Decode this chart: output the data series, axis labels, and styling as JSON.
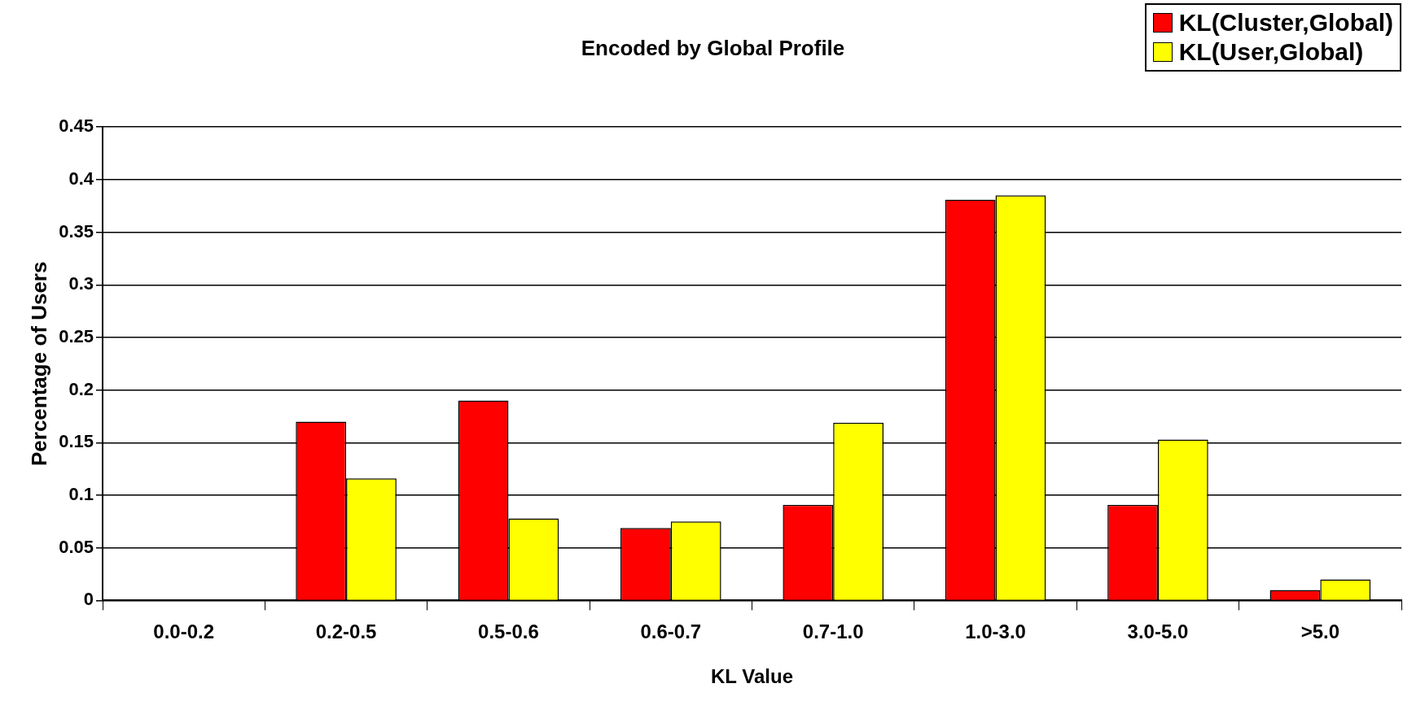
{
  "chart_data": {
    "type": "bar",
    "title": "Encoded by Global Profile",
    "xlabel": "KL Value",
    "ylabel": "Percentage of Users",
    "categories": [
      "0.0-0.2",
      "0.2-0.5",
      "0.5-0.6",
      "0.6-0.7",
      "0.7-1.0",
      "1.0-3.0",
      "3.0-5.0",
      ">5.0"
    ],
    "series": [
      {
        "name": "KL(Cluster,Global)",
        "color": "#ff0000",
        "values": [
          0,
          0.17,
          0.19,
          0.069,
          0.091,
          0.381,
          0.091,
          0.01
        ]
      },
      {
        "name": "KL(User,Global)",
        "color": "#ffff00",
        "values": [
          0,
          0.116,
          0.078,
          0.075,
          0.169,
          0.385,
          0.153,
          0.02
        ]
      }
    ],
    "ylim": [
      0,
      0.45
    ],
    "yticks": [
      0,
      0.05,
      0.1,
      0.15,
      0.2,
      0.25,
      0.3,
      0.35,
      0.4,
      0.45
    ],
    "grid": "y",
    "legend": "top right"
  }
}
